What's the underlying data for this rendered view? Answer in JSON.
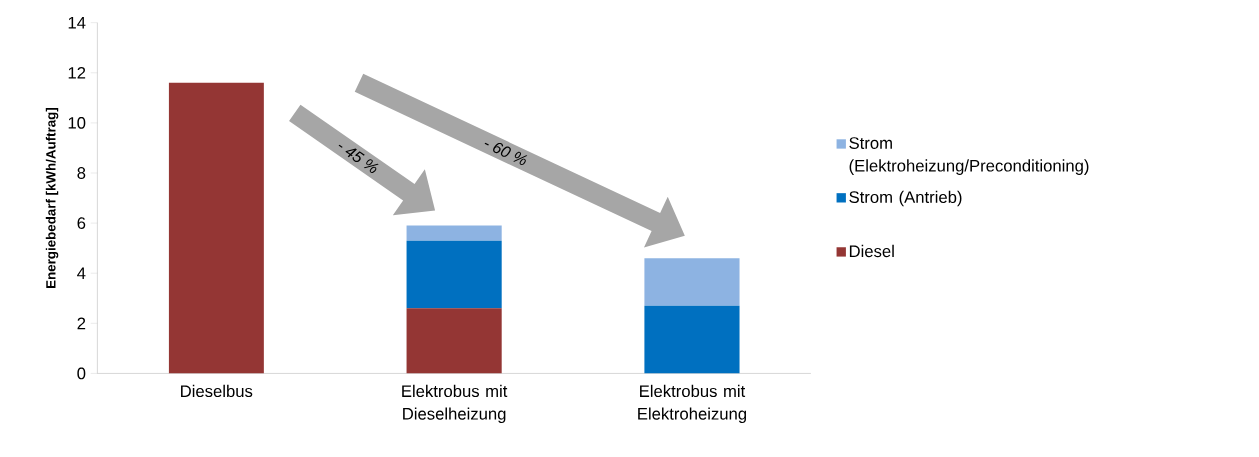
{
  "chart_data": {
    "type": "bar",
    "stacked": true,
    "ylabel": "Energiebedarf [kWh/Auftrag]",
    "categories": [
      "Dieselbus",
      "Elektrobus mit Dieselheizung",
      "Elektrobus mit Elektroheizung"
    ],
    "series": [
      {
        "name": "Diesel",
        "color": "#943634",
        "values": [
          11.6,
          2.6,
          null
        ]
      },
      {
        "name": "Strom (Antrieb)",
        "color": "#0070c0",
        "values": [
          null,
          2.7,
          2.7
        ]
      },
      {
        "name": "Strom (Elektroheizung/Preconditioning)",
        "color": "#8db3e2",
        "values": [
          null,
          0.6,
          1.9
        ]
      }
    ],
    "ylim": [
      0,
      14
    ],
    "yticks": [
      0,
      2,
      4,
      6,
      8,
      10,
      12,
      14
    ],
    "grid": false,
    "legend": "right",
    "annotations": [
      "- 45 %",
      "- 60 %"
    ]
  }
}
